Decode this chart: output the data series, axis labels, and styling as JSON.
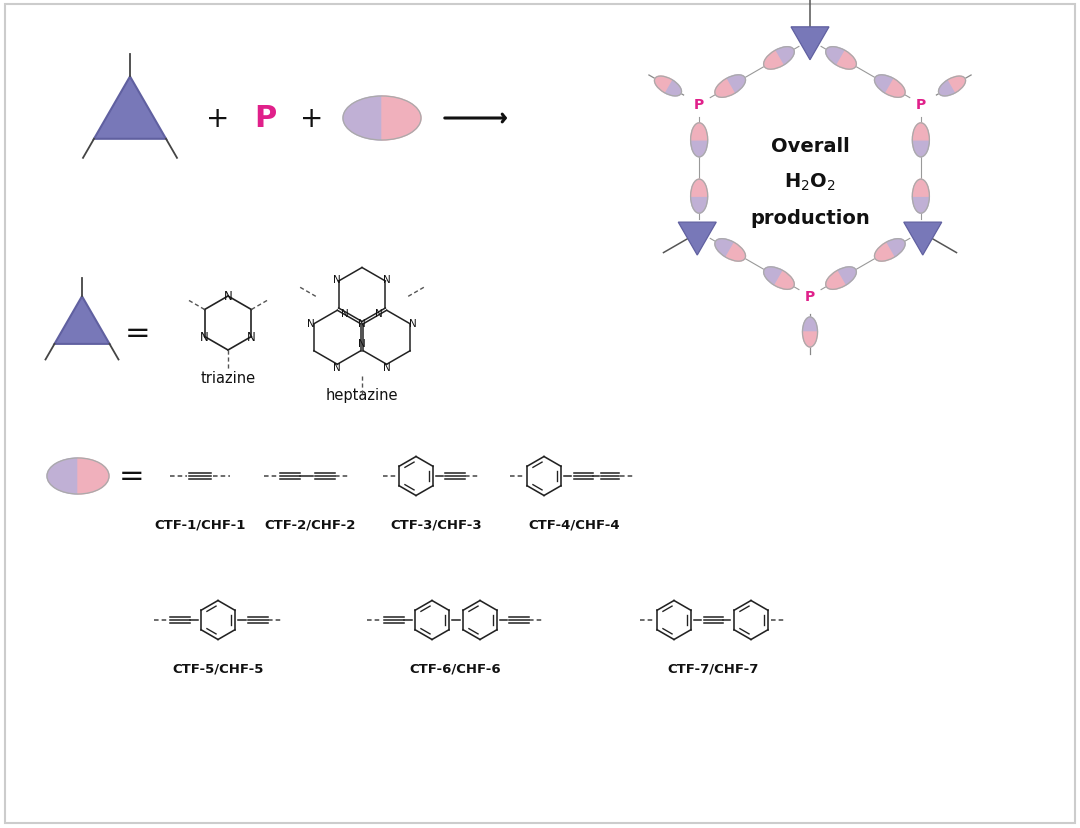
{
  "bg_color": "#ffffff",
  "triangle_color": "#7878b8",
  "triangle_edge_color": "#6060a0",
  "ellipse_blue": "#c0b0d5",
  "ellipse_pink": "#f0b0bc",
  "p_color": "#e0208a",
  "text_color": "#111111",
  "arrow_color": "#111111",
  "overall_text_lines": [
    "Overall",
    "H₂O₂",
    "production"
  ],
  "labels_row1": [
    "CTF-1/CHF-1",
    "CTF-2/CHF-2",
    "CTF-3/CHF-3",
    "CTF-4/CHF-4"
  ],
  "labels_row2": [
    "CTF-5/CHF-5",
    "CTF-6/CHF-6",
    "CTF-7/CHF-7"
  ],
  "border_color": "#cccccc"
}
